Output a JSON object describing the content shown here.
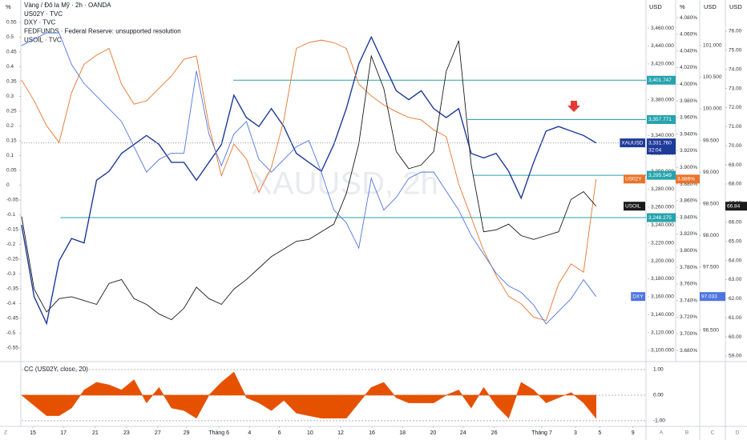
{
  "chart_data": {
    "type": "line",
    "header": [
      "Vàng / Đô la Mỹ · 2h · OANDA",
      "US02Y · TVC",
      "DXY · TVC",
      "FEDFUNDS · Federal Reserve: unsupported resolution",
      "USOIL · TVC"
    ],
    "watermark": "XAUUSD, 2h",
    "xlim": [
      0,
      100
    ],
    "xticks": [
      {
        "value": 1.8,
        "label": "15"
      },
      {
        "value": 6.7,
        "label": "17"
      },
      {
        "value": 11.8,
        "label": "21"
      },
      {
        "value": 16.8,
        "label": "23"
      },
      {
        "value": 21.8,
        "label": "27"
      },
      {
        "value": 26.4,
        "label": "29"
      },
      {
        "value": 31.6,
        "label": "Tháng 6"
      },
      {
        "value": 36.5,
        "label": "4"
      },
      {
        "value": 41.3,
        "label": "6"
      },
      {
        "value": 46.2,
        "label": "10"
      },
      {
        "value": 51.1,
        "label": "12"
      },
      {
        "value": 56.1,
        "label": "16"
      },
      {
        "value": 61.0,
        "label": "18"
      },
      {
        "value": 65.9,
        "label": "20"
      },
      {
        "value": 70.7,
        "label": "24"
      },
      {
        "value": 75.7,
        "label": "26"
      },
      {
        "value": 83.3,
        "label": "Tháng 7"
      },
      {
        "value": 88.7,
        "label": "3"
      },
      {
        "value": 92.6,
        "label": "5"
      },
      {
        "value": 97.9,
        "label": "9"
      }
    ],
    "x": [
      0,
      2,
      4,
      6,
      8,
      10,
      12,
      14,
      16,
      18,
      20,
      22,
      24,
      26,
      28,
      30,
      32,
      34,
      36,
      38,
      40,
      42,
      44,
      46,
      48,
      50,
      52,
      54,
      56,
      58,
      60,
      62,
      64,
      66,
      68,
      70,
      72,
      74,
      76,
      78,
      80,
      82,
      84,
      86,
      88,
      90,
      92
    ],
    "axes": {
      "left": {
        "title": "%",
        "ylim": [
          -0.5905,
          0.6257
        ],
        "yticks": [
          0.55,
          0.5,
          0.45,
          0.4,
          0.35,
          0.3,
          0.25,
          0.2,
          0.15,
          0.1,
          0.05,
          0,
          -0.05,
          -0.1,
          -0.15,
          -0.2,
          -0.25,
          -0.3,
          -0.35,
          -0.4,
          -0.45,
          -0.5,
          -0.55
        ]
      },
      "price": {
        "title": "USD",
        "ylim": [
          3089.3,
          3491.3
        ],
        "yticks": [
          {
            "value": 3460,
            "label": "3,460.000"
          },
          {
            "value": 3440,
            "label": "3,440.000"
          },
          {
            "value": 3420,
            "label": "3,420.000"
          },
          {
            "value": 3400,
            "label": "3,400.000"
          },
          {
            "value": 3380,
            "label": "3,380.000"
          },
          {
            "value": 3360,
            "label": "3,360.000"
          },
          {
            "value": 3340,
            "label": "3,340.000"
          },
          {
            "value": 3320,
            "label": "3,320.000"
          },
          {
            "value": 3300,
            "label": "3,300.000"
          },
          {
            "value": 3280,
            "label": "3,280.000"
          },
          {
            "value": 3260,
            "label": "3,260.000"
          },
          {
            "value": 3240,
            "label": "3,240.000"
          },
          {
            "value": 3220,
            "label": "3,220.000"
          },
          {
            "value": 3200,
            "label": "3,200.000"
          },
          {
            "value": 3180,
            "label": "3,180.000"
          },
          {
            "value": 3160,
            "label": "3,160.000"
          },
          {
            "value": 3140,
            "label": "3,140.000"
          },
          {
            "value": 3120,
            "label": "3,120.000"
          },
          {
            "value": 3100,
            "label": "3,100.000"
          }
        ]
      },
      "pct": {
        "title": "%",
        "ylim": [
          3.6685,
          4.1012
        ],
        "yticks": [
          {
            "value": 4.08,
            "label": "4.080%"
          },
          {
            "value": 4.06,
            "label": "4.060%"
          },
          {
            "value": 4.04,
            "label": "4.040%"
          },
          {
            "value": 4.02,
            "label": "4.020%"
          },
          {
            "value": 4.0,
            "label": "4.000%"
          },
          {
            "value": 3.98,
            "label": "3.980%"
          },
          {
            "value": 3.96,
            "label": "3.960%"
          },
          {
            "value": 3.94,
            "label": "3.940%"
          },
          {
            "value": 3.92,
            "label": "3.920%"
          },
          {
            "value": 3.9,
            "label": "3.900%"
          },
          {
            "value": 3.88,
            "label": "3.880%"
          },
          {
            "value": 3.86,
            "label": "3.860%"
          },
          {
            "value": 3.84,
            "label": "3.840%"
          },
          {
            "value": 3.82,
            "label": "3.820%"
          },
          {
            "value": 3.8,
            "label": "3.800%"
          },
          {
            "value": 3.78,
            "label": "3.780%"
          },
          {
            "value": 3.76,
            "label": "3.760%"
          },
          {
            "value": 3.74,
            "label": "3.740%"
          },
          {
            "value": 3.72,
            "label": "3.720%"
          },
          {
            "value": 3.7,
            "label": "3.700%"
          },
          {
            "value": 3.68,
            "label": "3.680%"
          }
        ]
      },
      "dxy": {
        "title": "USD",
        "ylim": [
          96.03,
          101.72
        ],
        "yticks": [
          {
            "value": 101,
            "label": "101.000"
          },
          {
            "value": 100.5,
            "label": "100.500"
          },
          {
            "value": 100,
            "label": "100.000"
          },
          {
            "value": 99.5,
            "label": "99.500"
          },
          {
            "value": 99,
            "label": "99.000"
          },
          {
            "value": 98.5,
            "label": "98.500"
          },
          {
            "value": 98,
            "label": "98.000"
          },
          {
            "value": 97.5,
            "label": "97.500"
          },
          {
            "value": 97,
            "label": "97.000"
          },
          {
            "value": 96.5,
            "label": "96.500"
          }
        ]
      },
      "oil": {
        "title": "USD",
        "ylim": [
          58.79,
          77.63
        ],
        "yticks": [
          {
            "value": 76,
            "label": "76.00"
          },
          {
            "value": 75,
            "label": "75.00"
          },
          {
            "value": 74,
            "label": "74.00"
          },
          {
            "value": 73,
            "label": "73.00"
          },
          {
            "value": 72,
            "label": "72.00"
          },
          {
            "value": 71,
            "label": "71.00"
          },
          {
            "value": 70,
            "label": "70.00"
          },
          {
            "value": 69,
            "label": "69.00"
          },
          {
            "value": 68,
            "label": "68.00"
          },
          {
            "value": 67,
            "label": "67.00"
          },
          {
            "value": 66,
            "label": "66.00"
          },
          {
            "value": 65,
            "label": "65.00"
          },
          {
            "value": 64,
            "label": "64.00"
          },
          {
            "value": 63,
            "label": "63.00"
          },
          {
            "value": 62,
            "label": "62.00"
          },
          {
            "value": 61,
            "label": "61.00"
          },
          {
            "value": 60,
            "label": "60.00"
          },
          {
            "value": 59,
            "label": "59.00"
          }
        ]
      }
    },
    "series": [
      {
        "name": "XAUUSD",
        "axis": "price",
        "color": "#1e3a9a",
        "last_label": "3,331.760",
        "countdown": "32:04",
        "values": [
          3240,
          3160,
          3130,
          3200,
          3225,
          3220,
          3290,
          3300,
          3320,
          3330,
          3340,
          3330,
          3310,
          3310,
          3290,
          3310,
          3330,
          3385,
          3360,
          3350,
          3370,
          3350,
          3320,
          3310,
          3300,
          3330,
          3370,
          3420,
          3450,
          3420,
          3390,
          3380,
          3390,
          3370,
          3360,
          3370,
          3320,
          3315,
          3320,
          3300,
          3270,
          3310,
          3345,
          3350,
          3345,
          3340,
          3331.76
        ]
      },
      {
        "name": "US02Y",
        "axis": "pct",
        "color": "#e8742b",
        "last_label": "3.886%",
        "values": [
          4.005,
          3.98,
          3.95,
          3.93,
          3.99,
          4.024,
          4.035,
          4.043,
          4.0,
          3.976,
          3.98,
          3.995,
          4.01,
          4.03,
          4.034,
          3.95,
          3.89,
          3.928,
          3.91,
          3.87,
          3.9,
          3.957,
          4.043,
          4.05,
          4.053,
          4.05,
          4.043,
          4.0,
          3.986,
          3.975,
          3.967,
          3.96,
          3.957,
          3.945,
          3.937,
          3.88,
          3.84,
          3.8,
          3.77,
          3.745,
          3.736,
          3.72,
          3.716,
          3.76,
          3.784,
          3.774,
          3.886
        ]
      },
      {
        "name": "DXY",
        "axis": "dxy",
        "color": "#4f74e0",
        "last_label": "97.033",
        "values": [
          101.0,
          101.1,
          101.2,
          101.2,
          100.7,
          100.4,
          100.2,
          100.0,
          99.8,
          99.4,
          99.0,
          99.2,
          99.3,
          99.3,
          100.6,
          99.6,
          99.1,
          99.6,
          99.8,
          99.2,
          99.0,
          99.2,
          99.4,
          99.5,
          99.0,
          98.4,
          98.2,
          97.8,
          98.9,
          98.4,
          98.6,
          98.9,
          99.0,
          99.0,
          98.7,
          98.4,
          98.0,
          97.7,
          97.4,
          97.2,
          97.1,
          96.9,
          96.6,
          96.8,
          97.0,
          97.3,
          97.033
        ]
      },
      {
        "name": "USOIL",
        "axis": "oil",
        "color": "#1a1a1a",
        "last_label": "66.84",
        "values": [
          66.3,
          62.5,
          61.3,
          62.0,
          62.1,
          61.9,
          61.7,
          62.8,
          63.0,
          62.0,
          61.7,
          61.2,
          60.9,
          61.5,
          62.6,
          62.0,
          61.7,
          62.5,
          63.0,
          63.6,
          64.2,
          64.6,
          65.0,
          65.1,
          65.5,
          65.9,
          67.5,
          70.1,
          74.7,
          73.0,
          69.7,
          68.8,
          69.0,
          69.7,
          73.9,
          75.5,
          69.0,
          65.5,
          65.6,
          65.9,
          65.3,
          65.1,
          65.3,
          65.5,
          67.2,
          67.6,
          66.84
        ]
      }
    ],
    "levels": [
      {
        "value": 3401.747,
        "label": "3,401.747",
        "x_start": 33.9
      },
      {
        "value": 3357.771,
        "label": "3,357.771",
        "x_start": 71.4
      },
      {
        "value": 3295.549,
        "label": "3,295.549",
        "x_start": 72.3
      },
      {
        "value": 3248.275,
        "label": "3,248.275",
        "x_start": 6.2
      }
    ],
    "level_color": "#26a3ad",
    "indicator": {
      "title": "CC (US02Y, close, 20)",
      "color": "#e65100",
      "ylim": [
        -1.19,
        1.28
      ],
      "yticks": [
        {
          "value": 1,
          "label": "1.00"
        },
        {
          "value": 0,
          "label": "0.00"
        },
        {
          "value": -1,
          "label": "-1.00"
        }
      ],
      "values": [
        0.0,
        -0.4,
        -0.8,
        -0.8,
        -0.5,
        0.2,
        0.5,
        0.4,
        0.2,
        0.6,
        -0.3,
        0.3,
        -0.5,
        -0.6,
        -0.9,
        0.0,
        0.5,
        0.9,
        -0.1,
        -0.3,
        -0.6,
        -0.2,
        -0.7,
        -0.8,
        -0.9,
        -0.9,
        -0.9,
        -0.3,
        0.3,
        0.5,
        -0.1,
        -0.3,
        -0.3,
        -0.3,
        0.0,
        0.2,
        -0.5,
        0.3,
        -0.4,
        -0.9,
        0.5,
        0.2,
        -0.3,
        -0.1,
        0.1,
        -0.3,
        -0.9
      ]
    },
    "pane_labels": [
      "Z",
      "A",
      "B",
      "C",
      "D"
    ]
  }
}
